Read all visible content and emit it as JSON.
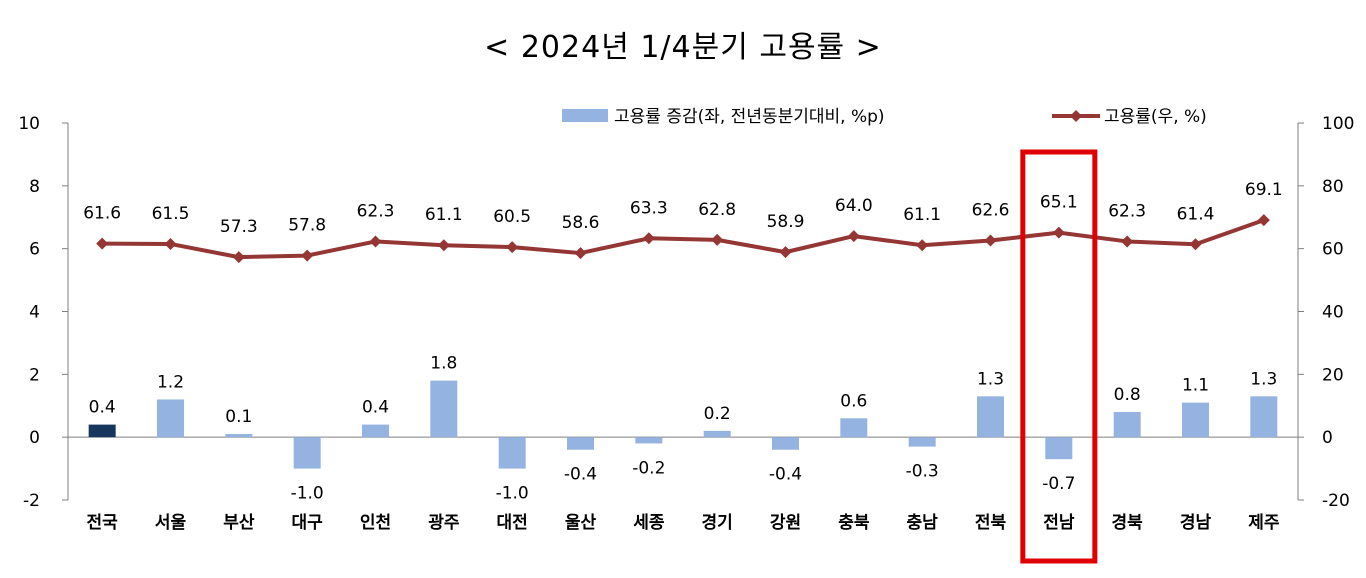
{
  "title": "< 2024년  1/4분기  고용률  >",
  "chart_data": {
    "type": "bar+line",
    "title": "< 2024년  1/4분기  고용률  >",
    "categories": [
      "전국",
      "서울",
      "부산",
      "대구",
      "인천",
      "광주",
      "대전",
      "울산",
      "세종",
      "경기",
      "강원",
      "충북",
      "충남",
      "전북",
      "전남",
      "경북",
      "경남",
      "제주"
    ],
    "series": [
      {
        "name": "고용률 증감(좌, 전년동분기대비, %p)",
        "type": "bar",
        "axis": "left",
        "values": [
          0.4,
          1.2,
          0.1,
          -1.0,
          0.4,
          1.8,
          -1.0,
          -0.4,
          -0.2,
          0.2,
          -0.4,
          0.6,
          -0.3,
          1.3,
          -0.7,
          0.8,
          1.1,
          1.3
        ],
        "labels": [
          "0.4",
          "1.2",
          "0.1",
          "-1.0",
          "0.4",
          "1.8",
          "-1.0",
          "-0.4",
          "-0.2",
          "0.2",
          "-0.4",
          "0.6",
          "-0.3",
          "1.3",
          "-0.7",
          "0.8",
          "1.1",
          "1.3"
        ],
        "color": "#95b3e0",
        "highlight_color": "#17365d",
        "highlight_index": 0
      },
      {
        "name": "고용률(우, %)",
        "type": "line",
        "axis": "right",
        "values": [
          61.6,
          61.5,
          57.3,
          57.8,
          62.3,
          61.1,
          60.5,
          58.6,
          63.3,
          62.8,
          58.9,
          64.0,
          61.1,
          62.6,
          65.1,
          62.3,
          61.4,
          69.1
        ],
        "labels": [
          "61.6",
          "61.5",
          "57.3",
          "57.8",
          "62.3",
          "61.1",
          "60.5",
          "58.6",
          "63.3",
          "62.8",
          "58.9",
          "64.0",
          "61.1",
          "62.6",
          "65.1",
          "62.3",
          "61.4",
          "69.1"
        ],
        "color": "#943634"
      }
    ],
    "y_left": {
      "ylim": [
        -2,
        10
      ],
      "ticks": [
        "-2",
        "0",
        "2",
        "4",
        "6",
        "8",
        "10"
      ]
    },
    "y_right": {
      "ylim": [
        -20,
        100
      ],
      "ticks": [
        "-20",
        "0",
        "20",
        "40",
        "60",
        "80",
        "100"
      ]
    },
    "legend_position": "top-right",
    "highlight_box": {
      "category": "전남",
      "color": "#e00000"
    },
    "grid": false
  }
}
